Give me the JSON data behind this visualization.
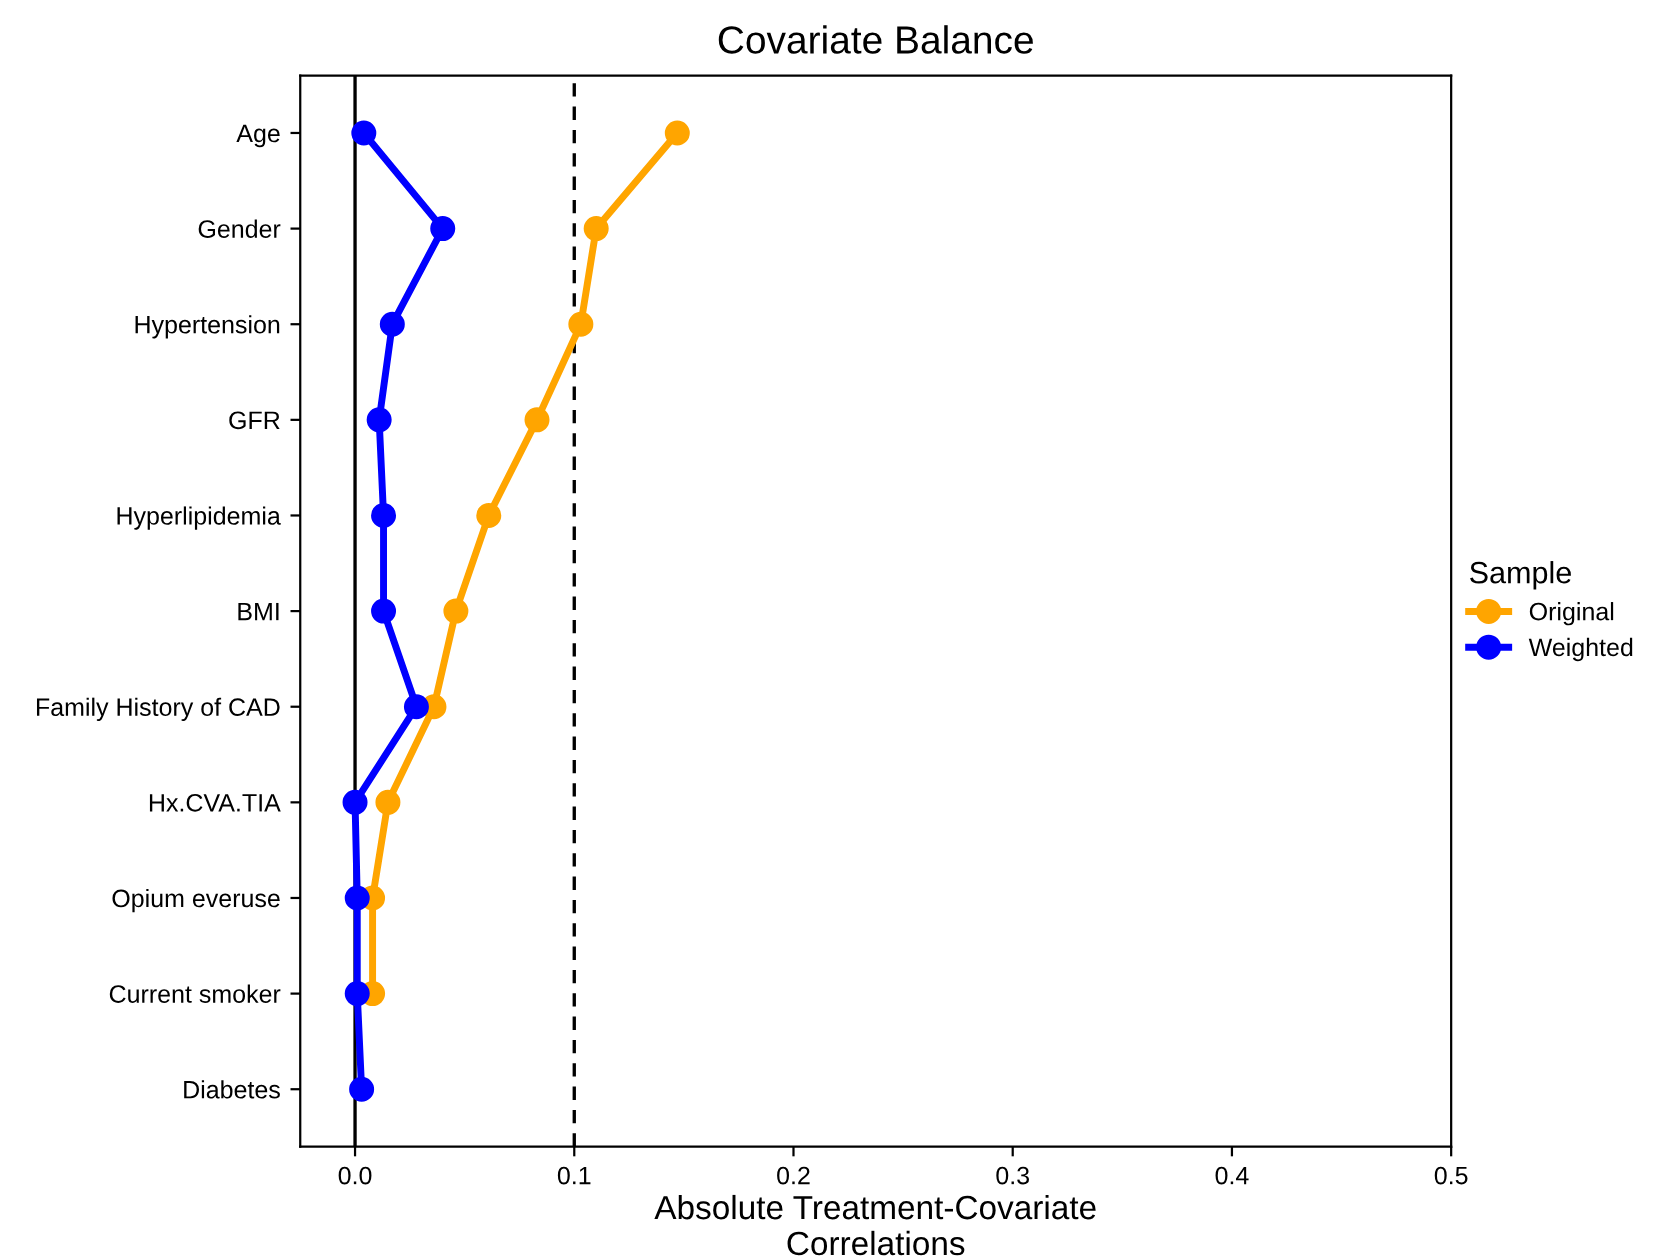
{
  "chart_data": {
    "type": "line",
    "orientation": "horizontal",
    "title": "Covariate Balance",
    "xlabel": "Absolute Treatment-Covariate\nCorrelations",
    "legend_title": "Sample",
    "legend": "right",
    "marker": "circle",
    "line_style": "solid",
    "grid": false,
    "categories": [
      "Age",
      "Gender",
      "Hypertension",
      "GFR",
      "Hyperlipidemia",
      "BMI",
      "Family History of CAD",
      "Hx.CVA.TIA",
      "Opium everuse",
      "Current smoker",
      "Diabetes"
    ],
    "series": [
      {
        "name": "Original",
        "color": "#ffa500",
        "values": [
          0.147,
          0.11,
          0.103,
          0.083,
          0.061,
          0.046,
          0.036,
          0.015,
          0.008,
          0.008,
          null
        ]
      },
      {
        "name": "Weighted",
        "color": "#0000ff",
        "values": [
          0.004,
          0.04,
          0.017,
          0.011,
          0.013,
          0.013,
          0.028,
          0.0,
          0.001,
          0.001,
          0.003
        ]
      }
    ],
    "xlim": [
      -0.025,
      0.5
    ],
    "xticks": [
      {
        "value": 0,
        "label": "0.0"
      },
      0.1,
      0.2,
      0.3,
      0.4,
      0.5
    ],
    "ref_lines": [
      {
        "axis": "x",
        "value": 0,
        "color": "#000000",
        "line_style": "solid"
      },
      {
        "axis": "x",
        "value": 0.1,
        "color": "#000000",
        "line_style": "dashed"
      }
    ]
  }
}
